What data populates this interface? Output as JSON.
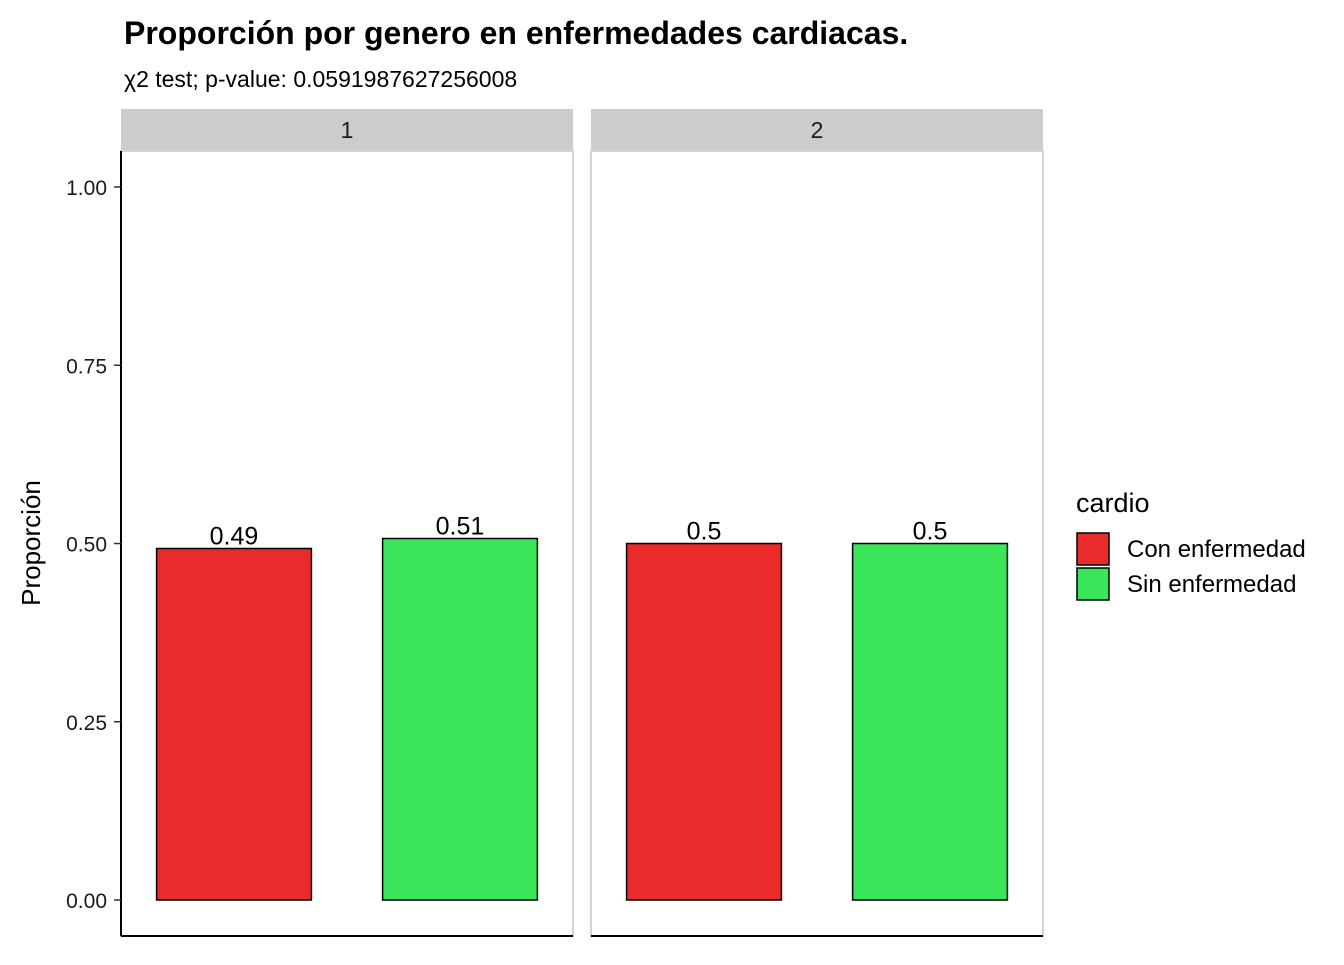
{
  "chart_data": {
    "type": "bar",
    "title": "Proporción por genero en enfermedades cardiacas.",
    "subtitle": "χ2 test; p-value: 0.0591987627256008",
    "xlabel": "",
    "ylabel": "Proporción",
    "ylim": [
      0,
      1.05
    ],
    "yticks": [
      0,
      0.25,
      0.5,
      0.75,
      1.0
    ],
    "ytick_labels": [
      "0.00",
      "0.25",
      "0.50",
      "0.75",
      "1.00"
    ],
    "grid": false,
    "legend": {
      "title": "cardio",
      "position": "right",
      "entries": [
        "Con enfermedad",
        "Sin enfermedad"
      ]
    },
    "categories": [
      "Con enfermedad",
      "Sin enfermedad"
    ],
    "colors": {
      "Con enfermedad": "#EA2B2B",
      "Sin enfermedad": "#3BE55A"
    },
    "facets": [
      {
        "label": "1",
        "bars": [
          {
            "category": "Con enfermedad",
            "value": 0.493,
            "label": "0.49"
          },
          {
            "category": "Sin enfermedad",
            "value": 0.507,
            "label": "0.51"
          }
        ]
      },
      {
        "label": "2",
        "bars": [
          {
            "category": "Con enfermedad",
            "value": 0.5,
            "label": "0.5"
          },
          {
            "category": "Sin enfermedad",
            "value": 0.5,
            "label": "0.5"
          }
        ]
      }
    ]
  }
}
